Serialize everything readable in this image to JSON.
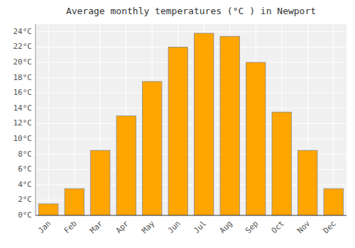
{
  "chart_data": {
    "type": "bar",
    "title": "Average monthly temperatures (°C ) in Newport",
    "categories": [
      "Jan",
      "Feb",
      "Mar",
      "Apr",
      "May",
      "Jun",
      "Jul",
      "Aug",
      "Sep",
      "Oct",
      "Nov",
      "Dec"
    ],
    "values": [
      1.5,
      3.5,
      8.5,
      13.0,
      17.5,
      22.0,
      23.8,
      23.4,
      20.0,
      13.5,
      8.5,
      3.5
    ],
    "color": "#FFA500",
    "ylim": [
      0,
      25
    ],
    "yticks": [
      {
        "value": 0,
        "label": "0°C"
      },
      {
        "value": 2,
        "label": "2°C"
      },
      {
        "value": 4,
        "label": "4°C"
      },
      {
        "value": 6,
        "label": "6°C"
      },
      {
        "value": 8,
        "label": "8°C"
      },
      {
        "value": 10,
        "label": "10°C"
      },
      {
        "value": 12,
        "label": "12°C"
      },
      {
        "value": 14,
        "label": "14°C"
      },
      {
        "value": 16,
        "label": "16°C"
      },
      {
        "value": 18,
        "label": "18°C"
      },
      {
        "value": 20,
        "label": "20°C"
      },
      {
        "value": 22,
        "label": "22°C"
      },
      {
        "value": 24,
        "label": "24°C"
      }
    ],
    "grid": true
  }
}
